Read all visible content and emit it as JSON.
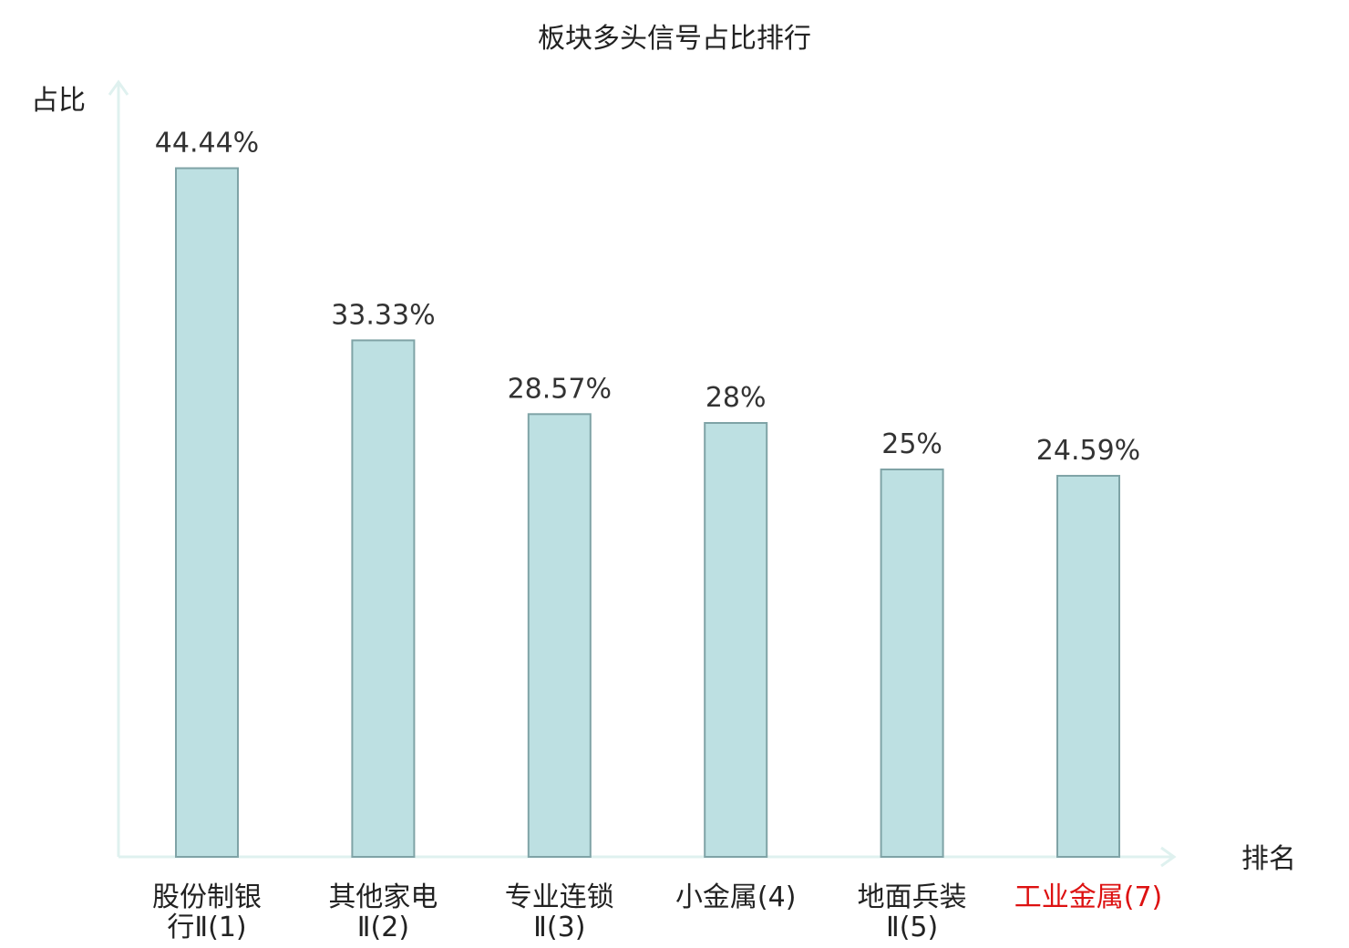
{
  "chart_data": {
    "type": "bar",
    "title": "板块多头信号占比排行",
    "ylabel": "占比",
    "xlabel": "排名",
    "categories": [
      [
        "股份制银",
        "行Ⅱ(1)"
      ],
      [
        "其他家电",
        "Ⅱ(2)"
      ],
      [
        "专业连锁",
        "Ⅱ(3)"
      ],
      [
        "小金属(4)"
      ],
      [
        "地面兵装",
        "Ⅱ(5)"
      ],
      [
        "工业金属(7)"
      ]
    ],
    "values": [
      44.44,
      33.33,
      28.57,
      28,
      25,
      24.59
    ],
    "value_labels": [
      "44.44%",
      "33.33%",
      "28.57%",
      "28%",
      "25%",
      "24.59%"
    ],
    "highlight_index": 5,
    "grid": false,
    "legend": "none",
    "colors": {
      "bar_fill": "#bde0e2",
      "bar_stroke": "#7fa3a6",
      "axis": "#dff1ef",
      "highlight_text": "#dd1111"
    }
  }
}
